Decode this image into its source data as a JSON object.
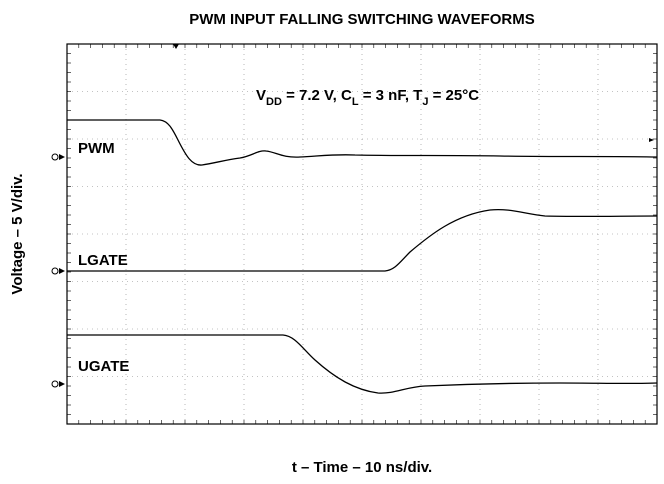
{
  "chart_data": {
    "type": "waveform",
    "title": "PWM INPUT FALLING SWITCHING WAVEFORMS",
    "annotation": [
      "V",
      "DD",
      " = 7.2 V, C",
      "L",
      " = 3 nF, T",
      "J",
      " = 25°C"
    ],
    "xlabel": "t – Time – 10 ns/div.",
    "ylabel": "Voltage – 5 V/div.",
    "traces": [
      "PWM",
      "LGATE",
      "UGATE"
    ]
  }
}
